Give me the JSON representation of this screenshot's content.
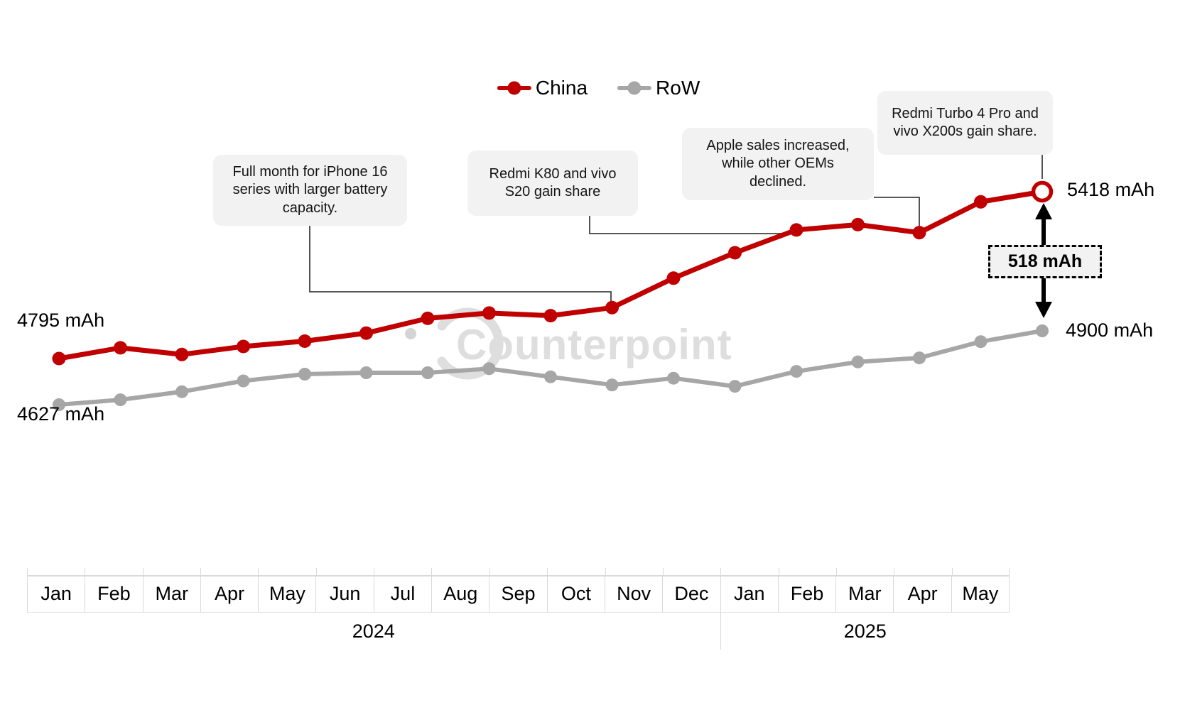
{
  "legend": {
    "items": [
      {
        "label": "China",
        "color": "#C00000"
      },
      {
        "label": "RoW",
        "color": "#A6A6A6"
      }
    ]
  },
  "watermark": {
    "text": "Counterpoint"
  },
  "chart_data": {
    "type": "line",
    "unit": "mAh",
    "grid": false,
    "legend_position": "top-center",
    "x": [
      "Jan 2024",
      "Feb 2024",
      "Mar 2024",
      "Apr 2024",
      "May 2024",
      "Jun 2024",
      "Jul 2024",
      "Aug 2024",
      "Sep 2024",
      "Oct 2024",
      "Nov 2024",
      "Dec 2024",
      "Jan 2025",
      "Feb 2025",
      "Mar 2025",
      "Apr 2025",
      "May 2025"
    ],
    "series": [
      {
        "name": "China",
        "color": "#C00000",
        "values": [
          4795,
          4835,
          4810,
          4840,
          4860,
          4890,
          4945,
          4965,
          4955,
          4985,
          5095,
          5190,
          5275,
          5295,
          5265,
          5380,
          5418
        ],
        "start_label": "4795 mAh",
        "end_label": "5418 mAh",
        "end_marker": "open-circle"
      },
      {
        "name": "RoW",
        "color": "#A6A6A6",
        "values": [
          4627,
          4645,
          4675,
          4715,
          4740,
          4745,
          4745,
          4760,
          4730,
          4700,
          4725,
          4695,
          4750,
          4785,
          4800,
          4860,
          4900
        ],
        "start_label": "4627 mAh",
        "end_label": "4900 mAh",
        "end_marker": "filled"
      }
    ],
    "gap_label": "518 mAh",
    "annotations": [
      {
        "text": "Full month for iPhone 16 series with larger battery capacity.",
        "points_to": "Oct 2024"
      },
      {
        "text": "Redmi K80 and vivo S20 gain share",
        "points_to": "Jan 2025"
      },
      {
        "text": "Apple sales increased, while other OEMs declined.",
        "points_to": "Mar 2025"
      },
      {
        "text": "Redmi Turbo 4 Pro and vivo X200s gain share.",
        "points_to": "May 2025"
      }
    ],
    "x_axis": {
      "months": [
        "Jan",
        "Feb",
        "Mar",
        "Apr",
        "May",
        "Jun",
        "Jul",
        "Aug",
        "Sep",
        "Oct",
        "Nov",
        "Dec",
        "Jan",
        "Feb",
        "Mar",
        "Apr",
        "May"
      ],
      "years": [
        {
          "label": "2024",
          "span": 12
        },
        {
          "label": "2025",
          "span": 5
        }
      ]
    }
  }
}
